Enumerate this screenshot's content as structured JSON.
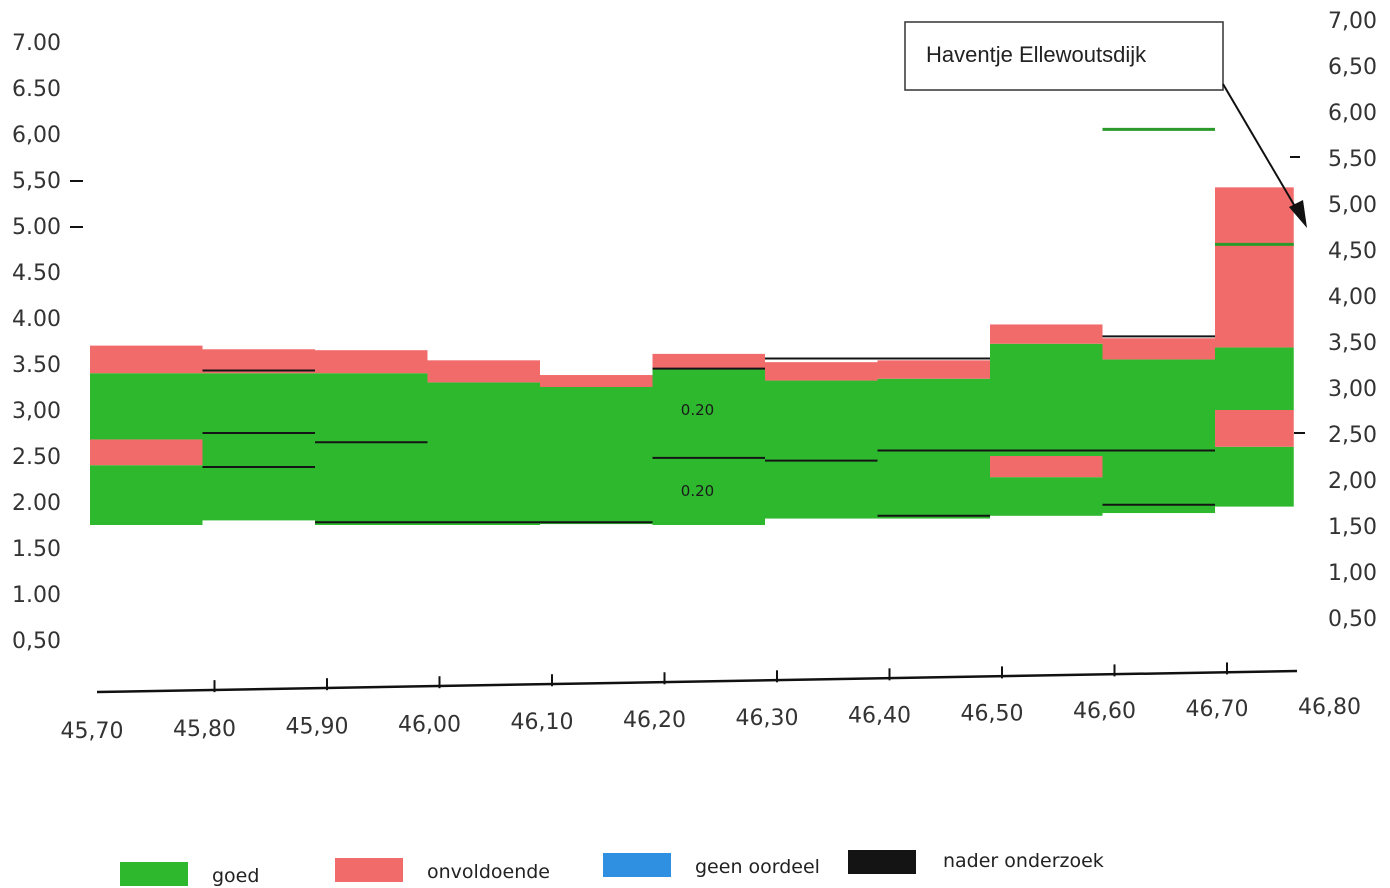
{
  "chart_data": {
    "type": "bar",
    "title": "",
    "xlabel": "",
    "ylabel": "",
    "xlim": [
      45.7,
      46.8
    ],
    "ylim": [
      0,
      7
    ],
    "x_ticks": [
      "45,70",
      "45,80",
      "45,90",
      "46,00",
      "46,10",
      "46,20",
      "46,30",
      "46,40",
      "46,50",
      "46,60",
      "46,70",
      "46,80"
    ],
    "y_ticks_left": [
      "7.00",
      "6.50",
      "6,00",
      "5,50",
      "5.00",
      "4.50",
      "4.00",
      "3.50",
      "3,00",
      "2.50",
      "2.00",
      "1.50",
      "1.00",
      "0,50"
    ],
    "y_ticks_right": [
      "7,00",
      "6,50",
      "6,00",
      "5,50",
      "5,00",
      "4,50",
      "4,00",
      "3,50",
      "3,00",
      "2,50",
      "2,00",
      "1,50",
      "1,00",
      "0,50"
    ],
    "colors": {
      "goed": "#2eb82e",
      "onvoldoende": "#f26b6b",
      "geen oordeel": "#2f8fe0",
      "nader onderzoek": "#141414"
    },
    "segments": [
      {
        "x0": 45.7,
        "x1": 45.8,
        "ranges": [
          [
            1.75,
            2.4,
            "goed"
          ],
          [
            2.4,
            2.68,
            "onvoldoende"
          ],
          [
            2.68,
            3.4,
            "goed"
          ],
          [
            3.4,
            3.7,
            "onvoldoende"
          ]
        ]
      },
      {
        "x0": 45.8,
        "x1": 45.9,
        "ranges": [
          [
            1.8,
            3.4,
            "goed"
          ],
          [
            3.4,
            3.66,
            "onvoldoende"
          ]
        ]
      },
      {
        "x0": 45.9,
        "x1": 46.0,
        "ranges": [
          [
            1.75,
            3.4,
            "goed"
          ],
          [
            3.4,
            3.65,
            "onvoldoende"
          ]
        ]
      },
      {
        "x0": 46.0,
        "x1": 46.1,
        "ranges": [
          [
            1.75,
            3.3,
            "goed"
          ],
          [
            3.3,
            3.54,
            "onvoldoende"
          ]
        ]
      },
      {
        "x0": 46.1,
        "x1": 46.2,
        "ranges": [
          [
            1.76,
            3.25,
            "goed"
          ],
          [
            3.25,
            3.38,
            "onvoldoende"
          ]
        ]
      },
      {
        "x0": 46.2,
        "x1": 46.3,
        "ranges": [
          [
            1.75,
            3.44,
            "goed"
          ],
          [
            3.44,
            3.61,
            "onvoldoende"
          ]
        ]
      },
      {
        "x0": 46.3,
        "x1": 46.4,
        "ranges": [
          [
            1.82,
            3.32,
            "goed"
          ],
          [
            3.32,
            3.52,
            "onvoldoende"
          ]
        ]
      },
      {
        "x0": 46.4,
        "x1": 46.5,
        "ranges": [
          [
            1.82,
            3.34,
            "goed"
          ],
          [
            3.34,
            3.54,
            "onvoldoende"
          ]
        ]
      },
      {
        "x0": 46.5,
        "x1": 46.6,
        "ranges": [
          [
            1.85,
            2.27,
            "goed"
          ],
          [
            2.27,
            2.5,
            "onvoldoende"
          ],
          [
            2.5,
            3.72,
            "goed"
          ],
          [
            3.72,
            3.93,
            "onvoldoende"
          ]
        ]
      },
      {
        "x0": 46.6,
        "x1": 46.7,
        "ranges": [
          [
            1.88,
            3.55,
            "goed"
          ],
          [
            3.55,
            3.78,
            "onvoldoende"
          ]
        ]
      },
      {
        "x0": 46.7,
        "x1": 46.77,
        "ranges": [
          [
            1.95,
            2.6,
            "goed"
          ],
          [
            2.6,
            3.0,
            "onvoldoende"
          ],
          [
            3.0,
            3.68,
            "goed"
          ],
          [
            3.68,
            5.42,
            "onvoldoende"
          ]
        ]
      }
    ],
    "black_lines": [
      {
        "x0": 45.8,
        "x1": 45.9,
        "y": 2.75
      },
      {
        "x0": 45.8,
        "x1": 45.9,
        "y": 2.38
      },
      {
        "x0": 45.8,
        "x1": 45.9,
        "y": 3.43
      },
      {
        "x0": 45.9,
        "x1": 46.0,
        "y": 2.65
      },
      {
        "x0": 45.9,
        "x1": 46.2,
        "y": 1.78
      },
      {
        "x0": 46.2,
        "x1": 46.3,
        "y": 2.48
      },
      {
        "x0": 46.2,
        "x1": 46.3,
        "y": 3.45
      },
      {
        "x0": 46.3,
        "x1": 46.4,
        "y": 2.45
      },
      {
        "x0": 46.3,
        "x1": 46.5,
        "y": 3.56
      },
      {
        "x0": 46.4,
        "x1": 46.5,
        "y": 2.56
      },
      {
        "x0": 46.4,
        "x1": 46.5,
        "y": 1.85
      },
      {
        "x0": 46.5,
        "x1": 46.7,
        "y": 2.56
      },
      {
        "x0": 46.6,
        "x1": 46.7,
        "y": 3.8
      },
      {
        "x0": 46.6,
        "x1": 46.7,
        "y": 1.97
      }
    ],
    "green_lines": [
      {
        "x0": 46.6,
        "x1": 46.7,
        "y": 6.05
      },
      {
        "x0": 46.7,
        "x1": 46.77,
        "y": 4.8
      }
    ],
    "segment_labels": [
      {
        "text": "0.20",
        "x": 46.24,
        "y": 3.0
      },
      {
        "text": "0.20",
        "x": 46.24,
        "y": 2.12
      }
    ],
    "annotation": {
      "text": "Haventje Ellewoutsdijk"
    },
    "legend": [
      {
        "label": "goed",
        "color": "#2eb82e"
      },
      {
        "label": "onvoldoende",
        "color": "#f26b6b"
      },
      {
        "label": "geen oordeel",
        "color": "#2f8fe0"
      },
      {
        "label": "nader onderzoek",
        "color": "#141414"
      }
    ],
    "legend_position": "bottom",
    "grid": false
  }
}
